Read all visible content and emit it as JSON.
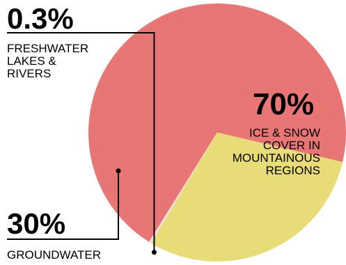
{
  "chart_data": {
    "type": "pie",
    "slices": [
      {
        "percent_label": "70%",
        "label": "ICE & SNOW\nCOVER IN\nMOUNTAINOUS\nREGIONS",
        "value": 70,
        "color": "#e87675"
      },
      {
        "percent_label": "30%",
        "label": "GROUNDWATER",
        "value": 30,
        "color": "#e8dc78"
      },
      {
        "percent_label": "0.3%",
        "label": "FRESHWATER\nLAKES &\nRIVERS",
        "value": 0.3,
        "color": "#f3dede"
      }
    ]
  }
}
